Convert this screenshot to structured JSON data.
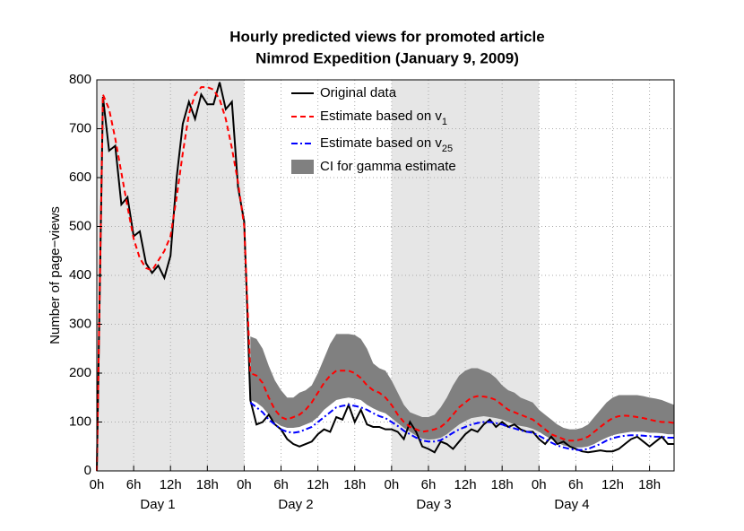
{
  "chart_data": {
    "type": "line",
    "title": [
      "Hourly predicted views for promoted article",
      "Nimrod Expedition (January 9, 2009)"
    ],
    "y_label": "Number of page−views",
    "day_labels": [
      "Day 1",
      "Day 2",
      "Day 3",
      "Day 4"
    ],
    "shaded_spans": [
      [
        0,
        24
      ],
      [
        48,
        72
      ]
    ],
    "xlim": [
      0,
      94
    ],
    "ylim": [
      0,
      800
    ],
    "xticks": [
      {
        "value": 0,
        "label": "0h"
      },
      {
        "value": 6,
        "label": "6h"
      },
      {
        "value": 12,
        "label": "12h"
      },
      {
        "value": 18,
        "label": "18h"
      },
      {
        "value": 24,
        "label": "0h"
      },
      {
        "value": 30,
        "label": "6h"
      },
      {
        "value": 36,
        "label": "12h"
      },
      {
        "value": 42,
        "label": "18h"
      },
      {
        "value": 48,
        "label": "0h"
      },
      {
        "value": 54,
        "label": "6h"
      },
      {
        "value": 60,
        "label": "12h"
      },
      {
        "value": 66,
        "label": "18h"
      },
      {
        "value": 72,
        "label": "0h"
      },
      {
        "value": 78,
        "label": "6h"
      },
      {
        "value": 84,
        "label": "12h"
      },
      {
        "value": 90,
        "label": "18h"
      }
    ],
    "yticks": [
      0,
      100,
      200,
      300,
      400,
      500,
      600,
      700,
      800
    ],
    "grid": true,
    "x": [
      0,
      1,
      2,
      3,
      4,
      5,
      6,
      7,
      8,
      9,
      10,
      11,
      12,
      13,
      14,
      15,
      16,
      17,
      18,
      19,
      20,
      21,
      22,
      23,
      24,
      25,
      26,
      27,
      28,
      29,
      30,
      31,
      32,
      33,
      34,
      35,
      36,
      37,
      38,
      39,
      40,
      41,
      42,
      43,
      44,
      45,
      46,
      47,
      48,
      49,
      50,
      51,
      52,
      53,
      54,
      55,
      56,
      57,
      58,
      59,
      60,
      61,
      62,
      63,
      64,
      65,
      66,
      67,
      68,
      69,
      70,
      71,
      72,
      73,
      74,
      75,
      76,
      77,
      78,
      79,
      80,
      81,
      82,
      83,
      84,
      85,
      86,
      87,
      88,
      89,
      90,
      91,
      92,
      93,
      94
    ],
    "series": [
      {
        "name": "Original data",
        "color": "#000000",
        "style": "solid",
        "values": [
          0,
          765,
          655,
          665,
          545,
          560,
          480,
          490,
          425,
          405,
          420,
          395,
          440,
          600,
          710,
          755,
          720,
          770,
          750,
          750,
          795,
          740,
          755,
          580,
          510,
          145,
          95,
          100,
          115,
          95,
          85,
          65,
          55,
          50,
          55,
          60,
          75,
          85,
          80,
          110,
          105,
          135,
          100,
          125,
          95,
          90,
          90,
          85,
          85,
          80,
          65,
          100,
          80,
          50,
          45,
          38,
          60,
          55,
          45,
          60,
          75,
          85,
          80,
          95,
          105,
          90,
          100,
          90,
          95,
          85,
          80,
          80,
          65,
          55,
          70,
          55,
          60,
          50,
          45,
          40,
          38,
          40,
          42,
          40,
          40,
          45,
          55,
          65,
          70,
          60,
          50,
          60,
          70,
          55,
          55
        ]
      },
      {
        "name": "Estimate based on v",
        "name_subscript": "1",
        "color": "#ff0000",
        "style": "dashed",
        "values": [
          0,
          770,
          740,
          680,
          610,
          540,
          475,
          435,
          415,
          410,
          430,
          450,
          480,
          560,
          650,
          730,
          770,
          785,
          785,
          780,
          760,
          720,
          660,
          590,
          500,
          200,
          195,
          180,
          150,
          125,
          110,
          105,
          110,
          115,
          125,
          140,
          160,
          180,
          195,
          205,
          205,
          205,
          200,
          190,
          175,
          165,
          160,
          150,
          135,
          115,
          100,
          90,
          85,
          80,
          82,
          85,
          90,
          100,
          115,
          130,
          140,
          150,
          153,
          152,
          150,
          145,
          135,
          125,
          120,
          115,
          110,
          105,
          95,
          85,
          75,
          70,
          65,
          62,
          62,
          65,
          70,
          80,
          90,
          100,
          108,
          112,
          113,
          112,
          110,
          108,
          105,
          102,
          100,
          100,
          98
        ]
      },
      {
        "name": "Estimate based on v",
        "name_subscript": "25",
        "color": "#0000ff",
        "style": "dashdot",
        "values": [
          null,
          null,
          null,
          null,
          null,
          null,
          null,
          null,
          null,
          null,
          null,
          null,
          null,
          null,
          null,
          null,
          null,
          null,
          null,
          null,
          null,
          null,
          null,
          null,
          null,
          140,
          130,
          120,
          105,
          95,
          85,
          80,
          78,
          80,
          85,
          90,
          100,
          110,
          120,
          130,
          133,
          135,
          133,
          130,
          125,
          118,
          112,
          108,
          100,
          92,
          82,
          75,
          68,
          62,
          60,
          60,
          63,
          70,
          78,
          85,
          90,
          95,
          98,
          100,
          100,
          98,
          95,
          90,
          87,
          83,
          80,
          78,
          72,
          65,
          58,
          52,
          48,
          45,
          43,
          43,
          45,
          50,
          55,
          62,
          67,
          70,
          72,
          73,
          73,
          72,
          71,
          70,
          70,
          68,
          68
        ]
      },
      {
        "name": "CI for gamma estimate",
        "color": "#808080",
        "style": "band",
        "upper": [
          null,
          null,
          null,
          null,
          null,
          null,
          null,
          null,
          null,
          null,
          null,
          null,
          null,
          null,
          null,
          null,
          null,
          null,
          null,
          null,
          null,
          null,
          null,
          null,
          null,
          275,
          270,
          250,
          215,
          185,
          165,
          150,
          150,
          160,
          165,
          175,
          200,
          230,
          260,
          280,
          280,
          280,
          278,
          270,
          250,
          220,
          210,
          205,
          185,
          160,
          135,
          120,
          115,
          110,
          110,
          115,
          130,
          150,
          175,
          195,
          205,
          210,
          210,
          205,
          200,
          190,
          175,
          165,
          160,
          150,
          145,
          140,
          125,
          115,
          105,
          95,
          88,
          85,
          85,
          88,
          95,
          110,
          125,
          140,
          150,
          155,
          155,
          155,
          155,
          153,
          150,
          148,
          145,
          140,
          135
        ],
        "lower": [
          null,
          null,
          null,
          null,
          null,
          null,
          null,
          null,
          null,
          null,
          null,
          null,
          null,
          null,
          null,
          null,
          null,
          null,
          null,
          null,
          null,
          null,
          null,
          null,
          null,
          145,
          140,
          130,
          115,
          100,
          92,
          88,
          88,
          90,
          95,
          100,
          110,
          125,
          135,
          145,
          148,
          150,
          148,
          145,
          135,
          128,
          122,
          118,
          108,
          98,
          88,
          80,
          72,
          66,
          64,
          65,
          68,
          75,
          85,
          95,
          102,
          108,
          110,
          112,
          110,
          108,
          105,
          100,
          95,
          92,
          90,
          86,
          80,
          72,
          65,
          58,
          52,
          50,
          48,
          48,
          50,
          55,
          62,
          68,
          73,
          76,
          78,
          80,
          80,
          80,
          78,
          78,
          77,
          75,
          75
        ]
      }
    ]
  }
}
